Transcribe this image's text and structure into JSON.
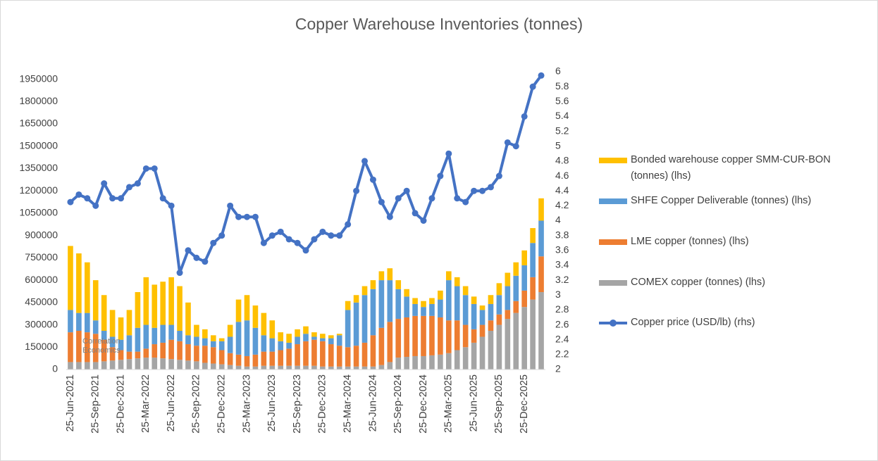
{
  "chart_data": {
    "type": "bar",
    "title": "Copper Warehouse Inventories (tonnes)",
    "watermark": "Correlation Economics",
    "categories": [
      "25-Jun-2021",
      null,
      null,
      "25-Sep-2021",
      null,
      null,
      "25-Dec-2021",
      null,
      null,
      "25-Mar-2022",
      null,
      null,
      "25-Jun-2022",
      null,
      null,
      "25-Sep-2022",
      null,
      null,
      "25-Dec-2022",
      null,
      null,
      "25-Mar-2023",
      null,
      null,
      "25-Jun-2023",
      null,
      null,
      "25-Sep-2023",
      null,
      null,
      "25-Dec-2023",
      null,
      null,
      "25-Mar-2024",
      null,
      null,
      "25-Jun-2024",
      null,
      null,
      "25-Sep-2024",
      null,
      null,
      "25-Dec-2024",
      null,
      null,
      "25-Mar-2025",
      null,
      null,
      "25-Jun-2025",
      null,
      null,
      "25-Sep-2025",
      null,
      null,
      "25-Dec-2025",
      null,
      null
    ],
    "series": [
      {
        "name": "Bonded warehouse copper SMM-CUR-BON (tonnes) (lhs)",
        "color": "#ffc000",
        "values": [
          430000,
          400000,
          340000,
          270000,
          240000,
          180000,
          150000,
          170000,
          240000,
          320000,
          290000,
          290000,
          320000,
          300000,
          220000,
          80000,
          60000,
          40000,
          20000,
          80000,
          150000,
          170000,
          150000,
          150000,
          120000,
          60000,
          60000,
          50000,
          50000,
          30000,
          30000,
          20000,
          10000,
          60000,
          50000,
          60000,
          60000,
          60000,
          80000,
          60000,
          50000,
          40000,
          40000,
          40000,
          60000,
          60000,
          60000,
          60000,
          50000,
          30000,
          60000,
          80000,
          90000,
          90000,
          100000,
          100000,
          150000
        ]
      },
      {
        "name": "SHFE Copper Deliverable (tonnes) (lhs)",
        "color": "#5b9bd5",
        "values": [
          150000,
          120000,
          130000,
          90000,
          60000,
          70000,
          70000,
          110000,
          160000,
          160000,
          110000,
          120000,
          100000,
          70000,
          60000,
          60000,
          50000,
          40000,
          60000,
          110000,
          220000,
          240000,
          180000,
          110000,
          90000,
          60000,
          40000,
          50000,
          50000,
          20000,
          20000,
          40000,
          70000,
          250000,
          290000,
          320000,
          310000,
          320000,
          280000,
          200000,
          140000,
          80000,
          60000,
          80000,
          120000,
          270000,
          230000,
          200000,
          170000,
          100000,
          110000,
          130000,
          160000,
          170000,
          170000,
          230000,
          240000
        ]
      },
      {
        "name": "LME copper (tonnes) (lhs)",
        "color": "#ed7d31",
        "values": [
          200000,
          210000,
          200000,
          190000,
          145000,
          90000,
          65000,
          50000,
          45000,
          60000,
          90000,
          105000,
          130000,
          125000,
          110000,
          105000,
          115000,
          110000,
          95000,
          80000,
          75000,
          70000,
          80000,
          95000,
          95000,
          105000,
          115000,
          145000,
          165000,
          175000,
          170000,
          150000,
          140000,
          130000,
          140000,
          160000,
          210000,
          250000,
          270000,
          260000,
          265000,
          270000,
          270000,
          265000,
          250000,
          220000,
          200000,
          150000,
          90000,
          80000,
          70000,
          70000,
          60000,
          80000,
          110000,
          150000,
          240000
        ]
      },
      {
        "name": "COMEX copper (tonnes) (lhs)",
        "color": "#a5a5a5",
        "values": [
          50000,
          50000,
          50000,
          50000,
          55000,
          60000,
          65000,
          70000,
          75000,
          80000,
          80000,
          75000,
          70000,
          65000,
          60000,
          55000,
          45000,
          40000,
          35000,
          30000,
          25000,
          20000,
          20000,
          25000,
          25000,
          25000,
          25000,
          25000,
          25000,
          25000,
          20000,
          20000,
          20000,
          20000,
          20000,
          20000,
          20000,
          30000,
          50000,
          80000,
          85000,
          90000,
          90000,
          95000,
          100000,
          110000,
          130000,
          150000,
          180000,
          220000,
          260000,
          300000,
          340000,
          380000,
          420000,
          470000,
          520000
        ]
      },
      {
        "name": "Copper price (USD/lb) (rhs)",
        "color": "#4472c4",
        "axis": "y2",
        "type": "line",
        "values": [
          4.25,
          4.35,
          4.3,
          4.2,
          4.5,
          4.3,
          4.3,
          4.45,
          4.5,
          4.7,
          4.7,
          4.3,
          4.2,
          3.3,
          3.6,
          3.5,
          3.45,
          3.7,
          3.8,
          4.2,
          4.05,
          4.05,
          4.05,
          3.7,
          3.8,
          3.85,
          3.75,
          3.7,
          3.6,
          3.75,
          3.85,
          3.8,
          3.8,
          3.95,
          4.4,
          4.8,
          4.55,
          4.25,
          4.05,
          4.3,
          4.4,
          4.1,
          4.0,
          4.3,
          4.6,
          4.9,
          4.3,
          4.25,
          4.4,
          4.4,
          4.45,
          4.6,
          5.05,
          5.0,
          5.4,
          5.8,
          5.95
        ]
      }
    ],
    "stacked": true,
    "grid": false,
    "legend": "right",
    "ylim": [
      0,
      2000000
    ],
    "yticks": [
      0,
      150000,
      300000,
      450000,
      600000,
      750000,
      900000,
      1050000,
      1200000,
      1350000,
      1500000,
      1650000,
      1800000,
      1950000
    ],
    "y2lim": [
      2,
      6
    ],
    "y2ticks": [
      2,
      2.2,
      2.4,
      2.6,
      2.8,
      3,
      3.2,
      3.4,
      3.6,
      3.8,
      4,
      4.2,
      4.4,
      4.6,
      4.8,
      5,
      5.2,
      5.4,
      5.6,
      5.8,
      6
    ]
  }
}
